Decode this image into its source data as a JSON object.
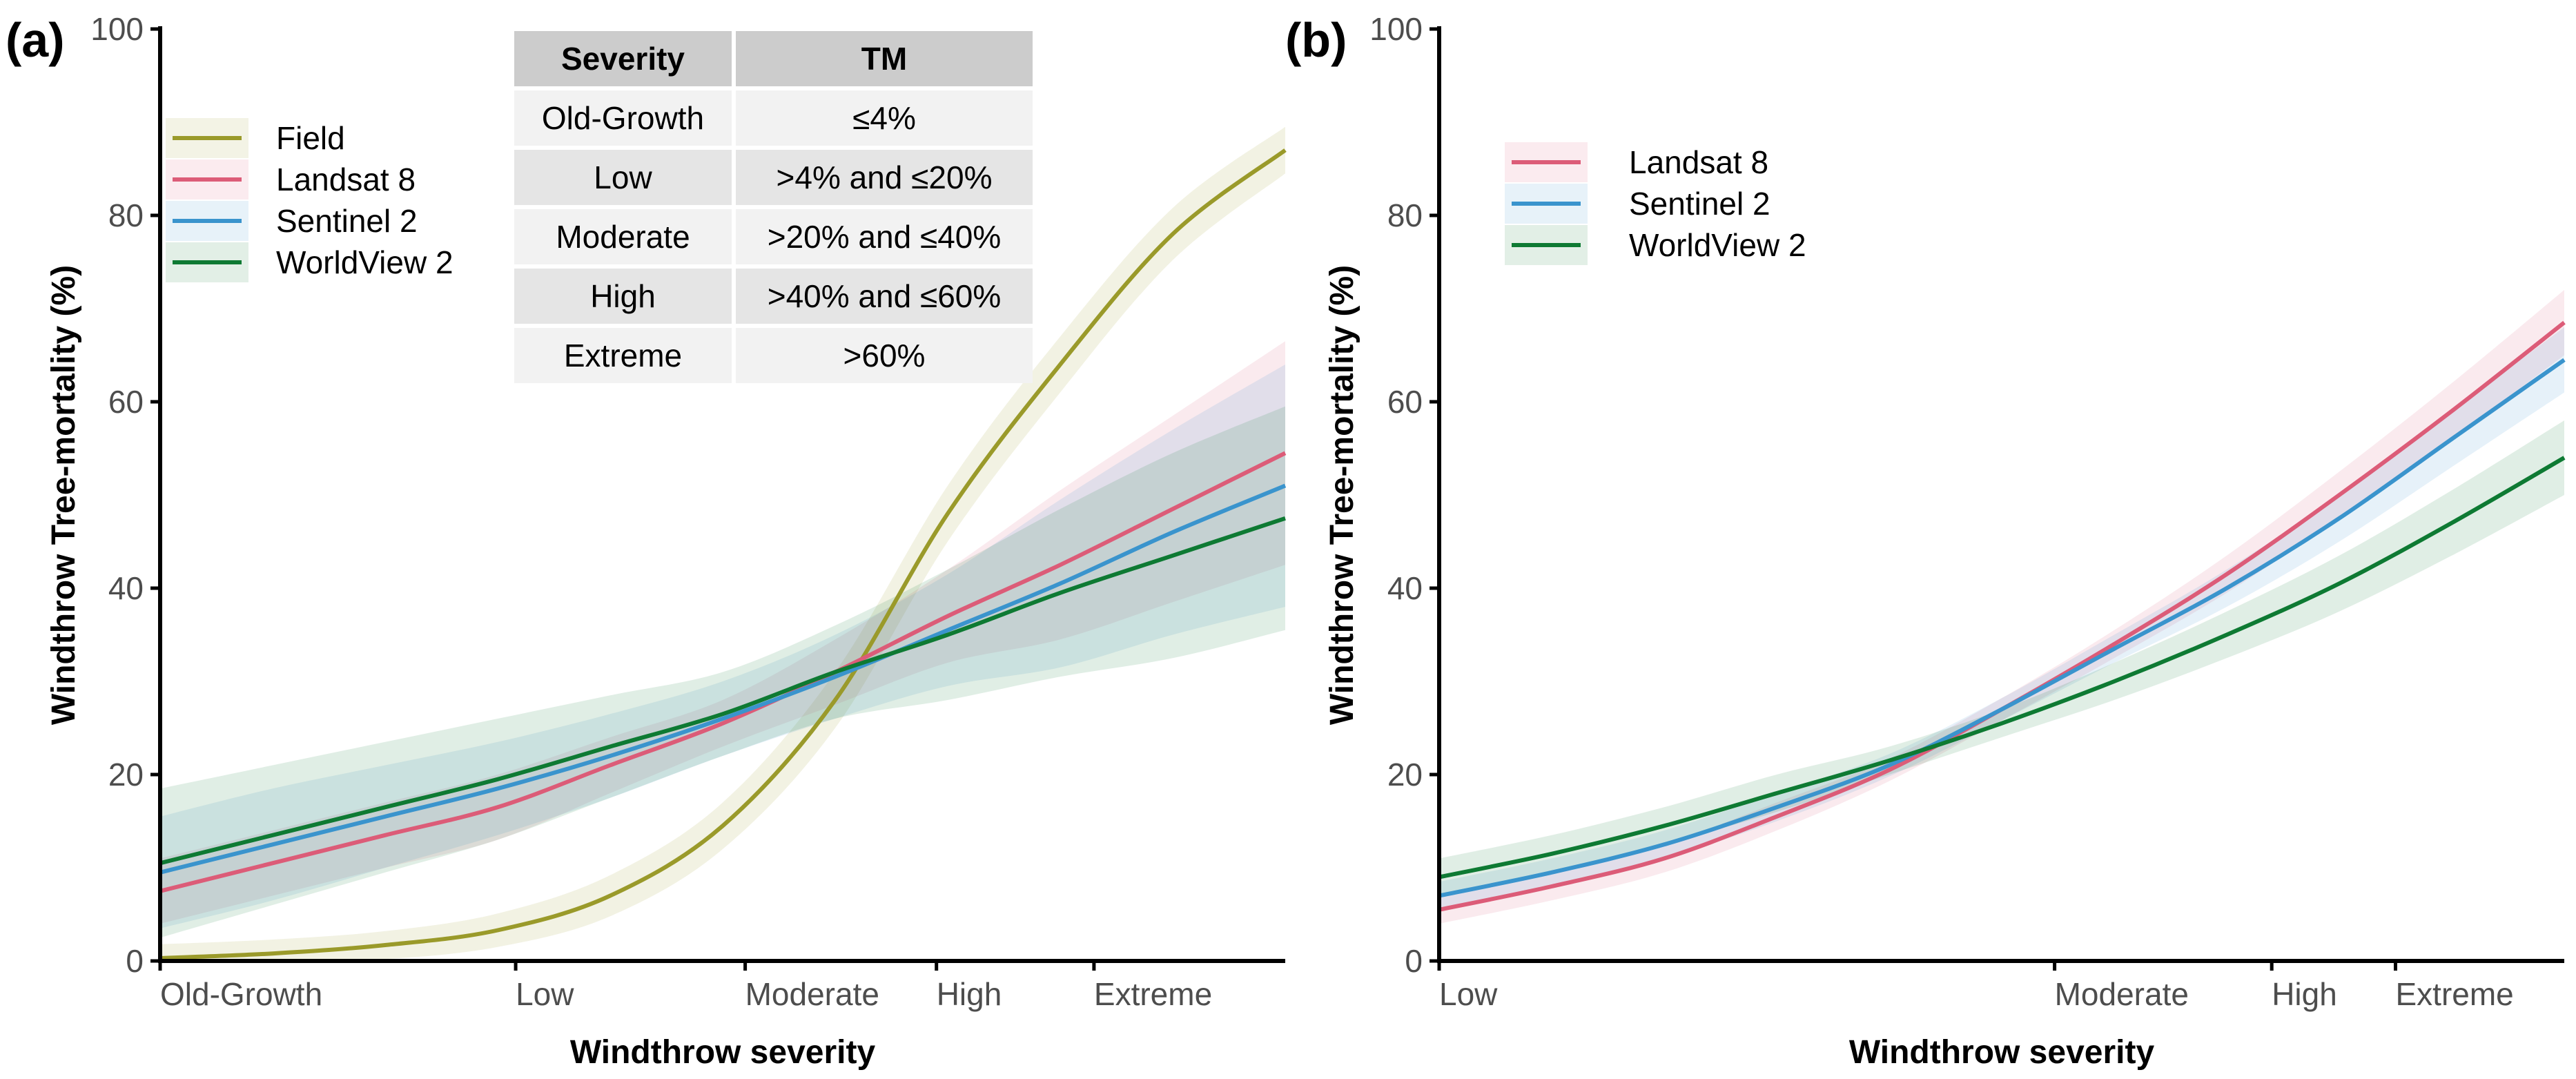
{
  "colors": {
    "Field": "#9a9a2a",
    "Landsat 8": "#dc5c78",
    "Sentinel 2": "#3a94cd",
    "WorldView 2": "#0e7a33",
    "axis": "#000000",
    "tick_label": "#4d4d4d",
    "table_header": "#cccccc",
    "table_row_odd": "#f2f2f2",
    "table_row_even": "#e5e5e5"
  },
  "chart_data": [
    {
      "panel_label": "(a)",
      "type": "line",
      "xlabel": "Windthrow severity",
      "ylabel": "Windthrow Tree-mortality (%)",
      "xlim": [
        0,
        1
      ],
      "ylim": [
        0,
        100
      ],
      "y_ticks": [
        0,
        20,
        40,
        60,
        80,
        100
      ],
      "x_ticks": [
        {
          "label": "Old-Growth",
          "value": 0.0
        },
        {
          "label": "Low",
          "value": 0.316
        },
        {
          "label": "Moderate",
          "value": 0.52
        },
        {
          "label": "High",
          "value": 0.69
        },
        {
          "label": "Extreme",
          "value": 0.83
        }
      ],
      "legend": [
        "Field",
        "Landsat 8",
        "Sentinel 2",
        "WorldView 2"
      ],
      "legend_position": "top-left",
      "grid": false,
      "x": [
        0,
        0.1,
        0.2,
        0.3,
        0.4,
        0.5,
        0.6,
        0.7,
        0.8,
        0.9,
        1.0
      ],
      "series": [
        {
          "name": "Field",
          "values": [
            0.3,
            0.8,
            1.7,
            3.3,
            7.0,
            14.5,
            28,
            48,
            64,
            78,
            87
          ],
          "band": [
            1.5,
            1.5,
            1.5,
            1.8,
            2.2,
            2.5,
            3,
            3,
            3,
            2.8,
            2.5
          ]
        },
        {
          "name": "Landsat 8",
          "values": [
            7.5,
            10.5,
            13.5,
            16.5,
            21,
            25.5,
            31,
            37,
            42.5,
            48.5,
            54.5
          ],
          "band": [
            3.5,
            3.5,
            3.5,
            3.5,
            3.0,
            2.5,
            3.5,
            5,
            8,
            10,
            12
          ]
        },
        {
          "name": "Sentinel 2",
          "values": [
            9.5,
            12.5,
            15.5,
            18.5,
            22,
            26,
            30.5,
            35.5,
            40.5,
            46,
            51
          ],
          "band": [
            6,
            6,
            5.5,
            5,
            4.5,
            4,
            4.5,
            6,
            9,
            11,
            13
          ]
        },
        {
          "name": "WorldView 2",
          "values": [
            10.5,
            13.5,
            16.5,
            19.5,
            23,
            26.5,
            31,
            35,
            39.5,
            43.5,
            47.5
          ],
          "band": [
            8,
            7.5,
            7,
            6.5,
            5.5,
            4.5,
            5,
            7,
            9,
            11,
            12
          ]
        }
      ],
      "table": {
        "headers": [
          "Severity",
          "TM"
        ],
        "rows": [
          [
            "Old-Growth",
            "≤4%"
          ],
          [
            "Low",
            ">4% and ≤20%"
          ],
          [
            "Moderate",
            ">20% and ≤40%"
          ],
          [
            "High",
            ">40% and ≤60%"
          ],
          [
            "Extreme",
            ">60%"
          ]
        ]
      }
    },
    {
      "panel_label": "(b)",
      "type": "line",
      "xlabel": "Windthrow severity",
      "ylabel": "Windthrow Tree-mortality (%)",
      "xlim": [
        0,
        1
      ],
      "ylim": [
        0,
        100
      ],
      "y_ticks": [
        0,
        20,
        40,
        60,
        80,
        100
      ],
      "x_ticks": [
        {
          "label": "Low",
          "value": 0.0
        },
        {
          "label": "Moderate",
          "value": 0.547
        },
        {
          "label": "High",
          "value": 0.74
        },
        {
          "label": "Extreme",
          "value": 0.85
        }
      ],
      "legend": [
        "Landsat 8",
        "Sentinel 2",
        "WorldView 2"
      ],
      "legend_position": "top-left",
      "grid": false,
      "x": [
        0,
        0.1,
        0.2,
        0.3,
        0.4,
        0.5,
        0.6,
        0.7,
        0.8,
        0.9,
        1.0
      ],
      "series": [
        {
          "name": "Landsat 8",
          "values": [
            5.5,
            8.0,
            11.0,
            15.5,
            20.5,
            27,
            34,
            41.5,
            50,
            59,
            68.5
          ],
          "band": [
            1.5,
            1.5,
            1.5,
            1.5,
            1.2,
            1.2,
            1.5,
            2,
            2.5,
            3,
            3.5
          ]
        },
        {
          "name": "Sentinel 2",
          "values": [
            7.0,
            9.5,
            12.5,
            16.5,
            21,
            27,
            33.5,
            40,
            47.5,
            56,
            64.5
          ],
          "band": [
            1.5,
            1.5,
            1.5,
            1.5,
            1.2,
            1.2,
            1.5,
            2,
            2.5,
            3,
            3.5
          ]
        },
        {
          "name": "WorldView 2",
          "values": [
            9.0,
            11.5,
            14.5,
            18,
            21.5,
            25.5,
            30,
            35,
            40.5,
            47,
            54
          ],
          "band": [
            2,
            2,
            2,
            2,
            1.5,
            1.5,
            2,
            2.5,
            3,
            3.5,
            4
          ]
        }
      ]
    }
  ]
}
